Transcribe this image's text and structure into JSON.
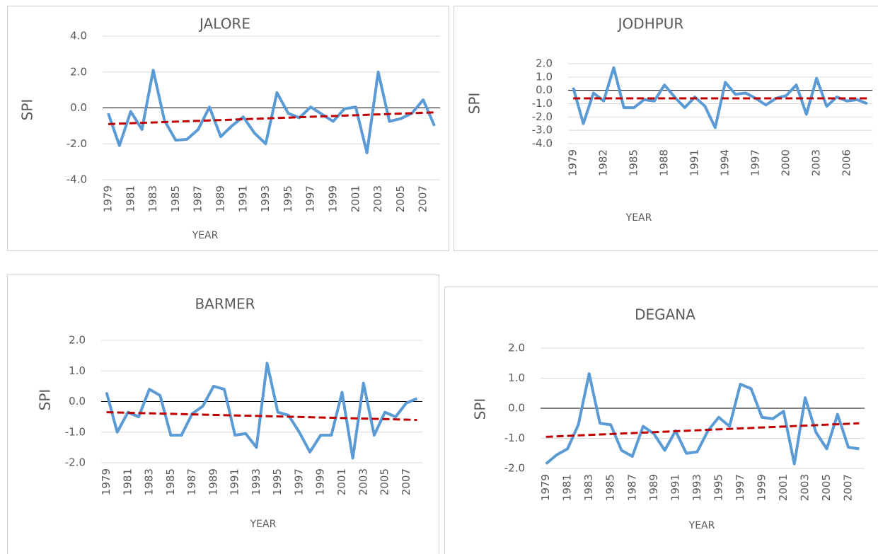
{
  "chart_data": [
    {
      "type": "line",
      "title": "JALORE",
      "y_label": "SPI",
      "x_label": "YEAR",
      "grid": true,
      "categories": [
        "1979",
        null,
        "1981",
        null,
        "1983",
        null,
        "1985",
        null,
        "1987",
        null,
        "1989",
        null,
        "1991",
        null,
        "1993",
        null,
        "1995",
        null,
        "1997",
        null,
        "1999",
        null,
        "2001",
        null,
        "2003",
        null,
        "2005",
        null,
        "2007",
        null
      ],
      "series": [
        {
          "color": "#5b9bd5",
          "values": [
            -0.3,
            -2.1,
            -0.2,
            -1.2,
            2.1,
            -0.7,
            -1.8,
            -1.75,
            -1.2,
            0.05,
            -1.6,
            -1.0,
            -0.5,
            -1.4,
            -2.0,
            0.85,
            -0.3,
            -0.55,
            0.05,
            -0.35,
            -0.75,
            -0.05,
            0.05,
            -2.5,
            2.0,
            -0.75,
            -0.6,
            -0.3,
            0.45,
            -1.0
          ]
        }
      ],
      "trendline": {
        "color": "#c00000",
        "values": [
          -0.9,
          -0.25
        ]
      },
      "ylim": [
        -4,
        4
      ],
      "yticks": [
        {
          "value": -4,
          "label": "-4.0"
        },
        {
          "value": -2,
          "label": "-2.0"
        },
        {
          "value": 0,
          "label": "0.0"
        },
        {
          "value": 2,
          "label": "2.0"
        },
        {
          "value": 4,
          "label": "4.0"
        }
      ]
    },
    {
      "type": "line",
      "title": "JODHPUR",
      "y_label": "SPI",
      "x_label": "YEAR",
      "grid": true,
      "categories": [
        "1979",
        null,
        null,
        "1982",
        null,
        null,
        "1985",
        null,
        null,
        "1988",
        null,
        null,
        "1991",
        null,
        null,
        "1994",
        null,
        null,
        "1997",
        null,
        null,
        "2000",
        null,
        null,
        "2003",
        null,
        null,
        "2006",
        null,
        null
      ],
      "series": [
        {
          "color": "#5b9bd5",
          "values": [
            0.2,
            -2.5,
            -0.2,
            -0.8,
            1.7,
            -1.3,
            -1.3,
            -0.7,
            -0.8,
            0.4,
            -0.5,
            -1.3,
            -0.5,
            -1.2,
            -2.8,
            0.6,
            -0.3,
            -0.2,
            -0.6,
            -1.1,
            -0.6,
            -0.4,
            0.4,
            -1.8,
            0.9,
            -1.2,
            -0.5,
            -0.8,
            -0.7,
            -1.0
          ]
        }
      ],
      "trendline": {
        "color": "#c00000",
        "values": [
          -0.6,
          -0.6
        ]
      },
      "ylim": [
        -4,
        2
      ],
      "yticks": [
        {
          "value": -4,
          "label": "-4.0"
        },
        {
          "value": -3,
          "label": "-3.0"
        },
        {
          "value": -2,
          "label": "-2.0"
        },
        {
          "value": -1,
          "label": "-1.0"
        },
        {
          "value": 0,
          "label": "0.0"
        },
        {
          "value": 1,
          "label": "1.0"
        },
        {
          "value": 2,
          "label": "2.0"
        }
      ]
    },
    {
      "type": "line",
      "title": "BARMER",
      "y_label": "SPI",
      "x_label": "YEAR",
      "grid": true,
      "categories": [
        "1979",
        null,
        "1981",
        null,
        "1983",
        null,
        "1985",
        null,
        "1987",
        null,
        "1989",
        null,
        "1991",
        null,
        "1993",
        null,
        "1995",
        null,
        "1997",
        null,
        "1999",
        null,
        "2001",
        null,
        "2003",
        null,
        "2005",
        null,
        "2007",
        null
      ],
      "series": [
        {
          "color": "#5b9bd5",
          "values": [
            0.3,
            -1.0,
            -0.35,
            -0.5,
            0.4,
            0.2,
            -1.1,
            -1.1,
            -0.4,
            -0.15,
            0.5,
            0.4,
            -1.1,
            -1.05,
            -1.5,
            1.25,
            -0.35,
            -0.45,
            -1.0,
            -1.65,
            -1.1,
            -1.1,
            0.3,
            -1.85,
            0.6,
            -1.1,
            -0.35,
            -0.5,
            -0.05,
            0.1
          ]
        }
      ],
      "trendline": {
        "color": "#c00000",
        "values": [
          -0.35,
          -0.6
        ]
      },
      "ylim": [
        -2,
        2
      ],
      "yticks": [
        {
          "value": -2,
          "label": "-2.0"
        },
        {
          "value": -1,
          "label": "-1.0"
        },
        {
          "value": 0,
          "label": "0.0"
        },
        {
          "value": 1,
          "label": "1.0"
        },
        {
          "value": 2,
          "label": "2.0"
        }
      ]
    },
    {
      "type": "line",
      "title": "DEGANA",
      "y_label": "SPI",
      "x_label": "YEAR",
      "grid": true,
      "categories": [
        "1979",
        null,
        "1981",
        null,
        "1983",
        null,
        "1985",
        null,
        "1987",
        null,
        "1989",
        null,
        "1991",
        null,
        "1993",
        null,
        "1995",
        null,
        "1997",
        null,
        "1999",
        null,
        "2001",
        null,
        "2003",
        null,
        "2005",
        null,
        "2007",
        null
      ],
      "series": [
        {
          "color": "#5b9bd5",
          "values": [
            -1.85,
            -1.55,
            -1.35,
            -0.55,
            1.15,
            -0.5,
            -0.55,
            -1.4,
            -1.6,
            -0.6,
            -0.85,
            -1.4,
            -0.75,
            -1.5,
            -1.45,
            -0.75,
            -0.3,
            -0.6,
            0.8,
            0.65,
            -0.3,
            -0.35,
            -0.1,
            -1.85,
            0.35,
            -0.8,
            -1.35,
            -0.2,
            -1.3,
            -1.35
          ]
        }
      ],
      "trendline": {
        "color": "#c00000",
        "values": [
          -0.95,
          -0.5
        ]
      },
      "ylim": [
        -2,
        2
      ],
      "yticks": [
        {
          "value": -2,
          "label": "-2.0"
        },
        {
          "value": -1,
          "label": "-1.0"
        },
        {
          "value": 0,
          "label": "0.0"
        },
        {
          "value": 1,
          "label": "1.0"
        },
        {
          "value": 2,
          "label": "2.0"
        }
      ]
    }
  ]
}
